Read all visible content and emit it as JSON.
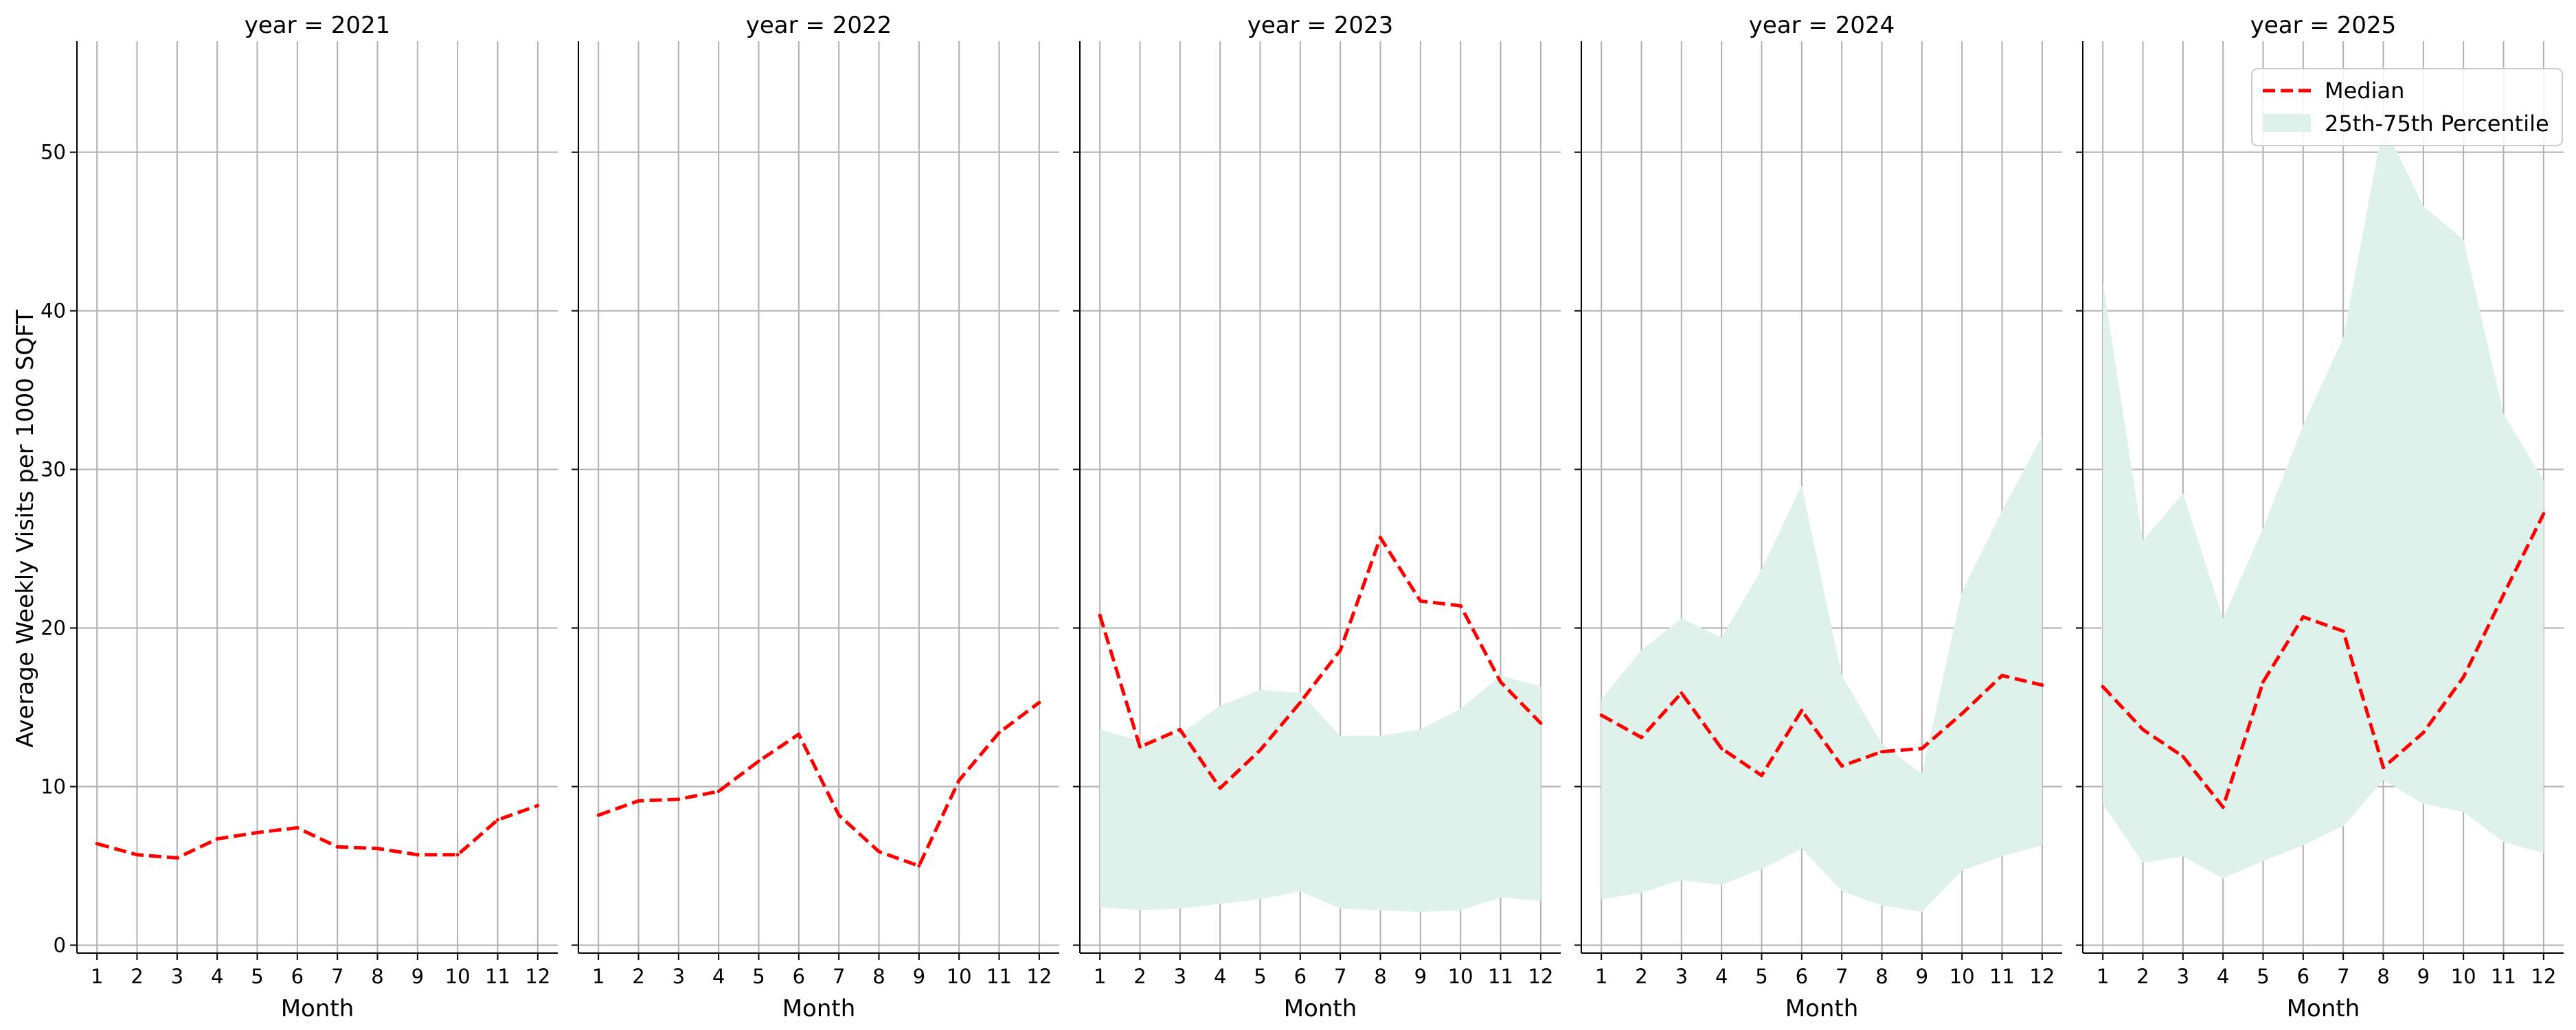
{
  "figure": {
    "ylabel": "Average Weekly Visits per 1000 SQFT",
    "xlabel": "Month",
    "y_ticks": [
      0,
      10,
      20,
      30,
      40,
      50
    ],
    "x_ticks": [
      1,
      2,
      3,
      4,
      5,
      6,
      7,
      8,
      9,
      10,
      11,
      12
    ],
    "ylim": [
      -0.5,
      57
    ],
    "xlim": [
      0.5,
      12.5
    ],
    "grid": true,
    "median_color": "#ff0000",
    "band_color": "#dff1eb",
    "legend": {
      "placement": "top-right",
      "median_label": "Median",
      "band_label": "25th-75th Percentile"
    }
  },
  "chart_data": [
    {
      "type": "line",
      "title": "year = 2021",
      "x": [
        1,
        2,
        3,
        4,
        5,
        6,
        7,
        8,
        9,
        10,
        11,
        12
      ],
      "series": [
        {
          "name": "Median",
          "values": [
            6.4,
            5.7,
            5.5,
            6.7,
            7.1,
            7.4,
            6.2,
            6.1,
            5.7,
            5.7,
            7.9,
            8.8
          ]
        }
      ]
    },
    {
      "type": "line",
      "title": "year = 2022",
      "x": [
        1,
        2,
        3,
        4,
        5,
        6,
        7,
        8,
        9,
        10,
        11,
        12
      ],
      "series": [
        {
          "name": "Median",
          "values": [
            8.2,
            9.1,
            9.2,
            9.7,
            11.6,
            13.3,
            8.2,
            5.9,
            5.0,
            10.4,
            13.4,
            15.3
          ]
        }
      ]
    },
    {
      "type": "area",
      "title": "year = 2023",
      "x": [
        1,
        2,
        3,
        4,
        5,
        6,
        7,
        8,
        9,
        10,
        11,
        12
      ],
      "series": [
        {
          "name": "Median",
          "values": [
            20.8,
            12.5,
            13.6,
            9.9,
            12.3,
            15.3,
            18.6,
            25.7,
            21.7,
            21.4,
            16.6,
            14.0
          ]
        }
      ],
      "band": {
        "name": "25th-75th Percentile",
        "lower": [
          2.4,
          2.2,
          2.3,
          2.6,
          2.9,
          3.4,
          2.3,
          2.2,
          2.1,
          2.2,
          3.0,
          2.8
        ],
        "upper": [
          13.6,
          12.9,
          13.3,
          15.1,
          16.1,
          15.9,
          13.2,
          13.2,
          13.6,
          14.9,
          17.0,
          16.3
        ]
      }
    },
    {
      "type": "area",
      "title": "year = 2024",
      "x": [
        1,
        2,
        3,
        4,
        5,
        6,
        7,
        8,
        9,
        10,
        11,
        12
      ],
      "series": [
        {
          "name": "Median",
          "values": [
            14.5,
            13.1,
            15.9,
            12.4,
            10.7,
            14.8,
            11.3,
            12.2,
            12.4,
            14.6,
            17.0,
            16.4
          ]
        }
      ],
      "band": {
        "name": "25th-75th Percentile",
        "lower": [
          2.9,
          3.3,
          4.1,
          3.8,
          4.8,
          6.1,
          3.4,
          2.5,
          2.1,
          4.7,
          5.6,
          6.3
        ],
        "upper": [
          15.5,
          18.6,
          20.6,
          19.4,
          23.7,
          29.0,
          17.0,
          12.7,
          10.8,
          22.3,
          27.4,
          32.1
        ]
      }
    },
    {
      "type": "area",
      "title": "year = 2025",
      "x": [
        1,
        2,
        3,
        4,
        5,
        6,
        7,
        8,
        9,
        10,
        11,
        12
      ],
      "series": [
        {
          "name": "Median",
          "values": [
            16.3,
            13.6,
            11.9,
            8.7,
            16.6,
            20.7,
            19.8,
            11.2,
            13.4,
            16.9,
            22.1,
            27.2
          ]
        }
      ],
      "band": {
        "name": "25th-75th Percentile",
        "lower": [
          8.9,
          5.2,
          5.6,
          4.2,
          5.3,
          6.3,
          7.5,
          10.4,
          8.9,
          8.4,
          6.5,
          5.8
        ],
        "upper": [
          41.8,
          25.5,
          28.5,
          20.6,
          26.3,
          32.8,
          38.3,
          51.8,
          46.6,
          44.5,
          33.5,
          29.3
        ]
      }
    }
  ]
}
